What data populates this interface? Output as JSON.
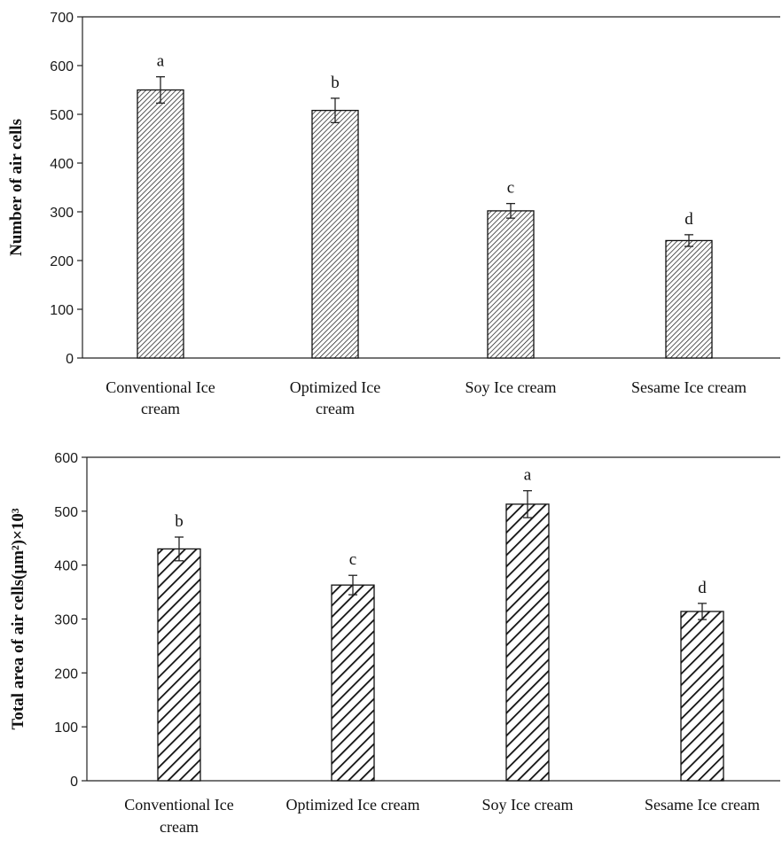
{
  "chart_data": [
    {
      "type": "bar",
      "ylabel": "Number of air cells",
      "ylim": [
        0,
        700
      ],
      "yticks": [
        0,
        100,
        200,
        300,
        400,
        500,
        600,
        700
      ],
      "categories": [
        [
          "Conventional Ice",
          "cream"
        ],
        [
          "Optimized Ice",
          "cream"
        ],
        [
          "Soy Ice cream"
        ],
        [
          "Sesame Ice cream"
        ]
      ],
      "values": [
        550,
        508,
        302,
        241
      ],
      "errors": [
        27,
        25,
        15,
        12
      ],
      "significance": [
        "a",
        "b",
        "c",
        "d"
      ],
      "pattern": "fine diagonal hatch",
      "colors": {
        "bar_fill": "#ffffff",
        "hatch": "#111111",
        "axis": "#222222"
      }
    },
    {
      "type": "bar",
      "ylabel": "Total area of air cells(μm²)×10³",
      "ylim": [
        0,
        600
      ],
      "yticks": [
        0,
        100,
        200,
        300,
        400,
        500,
        600
      ],
      "categories": [
        [
          "Conventional Ice",
          "cream"
        ],
        [
          "Optimized Ice cream"
        ],
        [
          "Soy Ice cream"
        ],
        [
          "Sesame Ice cream"
        ]
      ],
      "values": [
        430,
        363,
        513,
        314
      ],
      "errors": [
        22,
        18,
        25,
        15
      ],
      "significance": [
        "b",
        "c",
        "a",
        "d"
      ],
      "pattern": "wide diagonal hatch",
      "colors": {
        "bar_fill": "#ffffff",
        "hatch": "#111111",
        "axis": "#222222"
      }
    }
  ]
}
